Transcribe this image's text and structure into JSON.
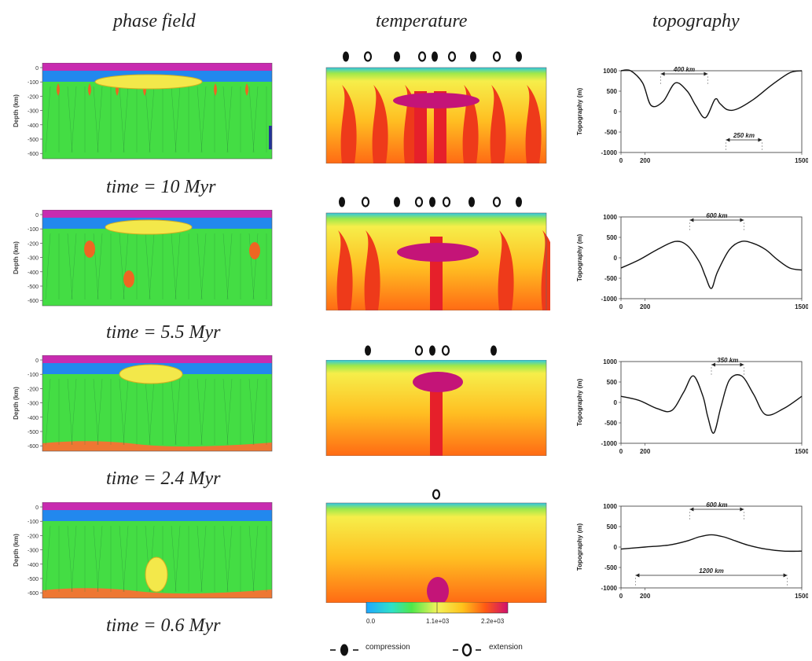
{
  "headers": {
    "phase": "phase field",
    "temperature": "temperature",
    "topography": "topography"
  },
  "depth_axis": {
    "label": "Depth (km)",
    "ticks": [
      "0",
      "-100",
      "-200",
      "-300",
      "-400",
      "-500",
      "-600"
    ]
  },
  "rows": [
    {
      "time": "time = 10 Myr",
      "markers": [
        "compression",
        "extension",
        "compression",
        "extension",
        "compression",
        "extension",
        "compression",
        "extension",
        "compression"
      ],
      "topo": {
        "annotations": [
          "400 km",
          "250 km"
        ]
      }
    },
    {
      "time": "time = 5.5 Myr",
      "markers": [
        "compression",
        "extension",
        "compression",
        "extension",
        "compression",
        "extension",
        "compression",
        "extension",
        "compression"
      ],
      "topo": {
        "annotations": [
          "600 km"
        ]
      }
    },
    {
      "time": "time = 2.4 Myr",
      "markers": [
        "compression",
        "extension",
        "compression",
        "extension",
        "compression"
      ],
      "topo": {
        "annotations": [
          "350 km"
        ]
      }
    },
    {
      "time": "time = 0.6 Myr",
      "markers": [
        "extension"
      ],
      "topo": {
        "annotations": [
          "600 km",
          "1200 km"
        ]
      }
    }
  ],
  "topo_axis": {
    "ylabel": "Topography (m)",
    "yticks": [
      "1000",
      "500",
      "0",
      "-500",
      "-1000"
    ],
    "xticks": [
      "0",
      "200",
      "1500"
    ]
  },
  "colorbar": {
    "min": "0.0",
    "mid": "1.1e+03",
    "max": "2.2e+03"
  },
  "legend": {
    "compression": "compression",
    "extension": "extension"
  },
  "chart_data": [
    {
      "type": "line",
      "title": "",
      "xlabel": "",
      "ylabel": "Topography (m)",
      "xlim": [
        0,
        1500
      ],
      "ylim": [
        -1000,
        1000
      ],
      "series": [
        {
          "x": [
            0,
            80,
            180,
            250,
            350,
            450,
            550,
            620,
            700,
            780,
            820,
            880,
            960,
            1100,
            1250,
            1400,
            1500
          ],
          "y": [
            1000,
            1000,
            700,
            150,
            250,
            700,
            500,
            150,
            -150,
            300,
            200,
            50,
            60,
            300,
            650,
            950,
            1000
          ]
        }
      ]
    },
    {
      "type": "line",
      "title": "",
      "xlabel": "",
      "ylabel": "Topography (m)",
      "xlim": [
        0,
        1500
      ],
      "ylim": [
        -1000,
        1000
      ],
      "series": [
        {
          "x": [
            0,
            150,
            300,
            450,
            550,
            650,
            700,
            750,
            800,
            900,
            1000,
            1100,
            1200,
            1300,
            1400,
            1500
          ],
          "y": [
            -250,
            -50,
            200,
            400,
            300,
            -100,
            -450,
            -750,
            -350,
            200,
            400,
            350,
            200,
            -50,
            -250,
            -300
          ]
        }
      ]
    },
    {
      "type": "line",
      "title": "",
      "xlabel": "",
      "ylabel": "Topography (m)",
      "xlim": [
        0,
        1500
      ],
      "ylim": [
        -1000,
        1000
      ],
      "series": [
        {
          "x": [
            0,
            150,
            300,
            420,
            520,
            600,
            680,
            720,
            770,
            830,
            900,
            1000,
            1100,
            1200,
            1350,
            1500
          ],
          "y": [
            150,
            50,
            -150,
            -200,
            250,
            650,
            150,
            -350,
            -750,
            -100,
            550,
            650,
            200,
            -300,
            -150,
            150
          ]
        }
      ]
    },
    {
      "type": "line",
      "title": "",
      "xlabel": "",
      "ylabel": "Topography (m)",
      "xlim": [
        0,
        1500
      ],
      "ylim": [
        -1000,
        1000
      ],
      "series": [
        {
          "x": [
            0,
            200,
            400,
            550,
            650,
            750,
            850,
            950,
            1050,
            1200,
            1350,
            1500
          ],
          "y": [
            -50,
            0,
            50,
            150,
            250,
            300,
            250,
            150,
            50,
            -50,
            -100,
            -100
          ]
        }
      ]
    }
  ]
}
